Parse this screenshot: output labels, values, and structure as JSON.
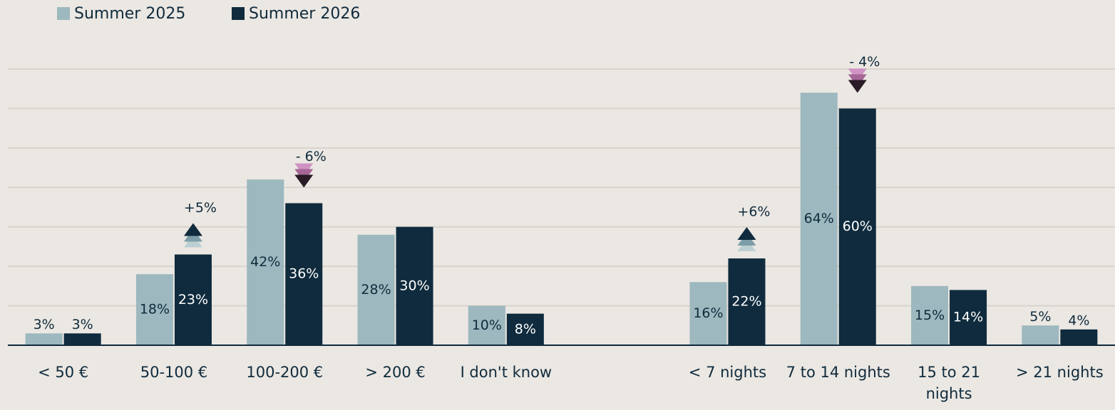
{
  "chart_data": {
    "type": "bar",
    "categories": [
      "< 50 €",
      "50-100 €",
      "100-200 €",
      "> 200 €",
      "I don't know",
      null,
      "< 7 nights",
      "7 to 14 nights",
      "15 to 21 nights",
      "> 21 nights"
    ],
    "series": [
      {
        "name": "Summer 2025",
        "color": "#9db8be",
        "values": [
          3,
          18,
          42,
          28,
          10,
          null,
          16,
          64,
          15,
          5
        ],
        "value_labels": [
          "3%",
          "18%",
          "42%",
          "28%",
          "10%",
          null,
          "16%",
          "64%",
          "15%",
          "5%"
        ]
      },
      {
        "name": "Summer 2026",
        "color": "#0f2b3d",
        "values": [
          3,
          23,
          36,
          30,
          8,
          null,
          22,
          60,
          14,
          4
        ],
        "value_labels": [
          "3%",
          "23%",
          "36%",
          "30%",
          "8%",
          null,
          "22%",
          "60%",
          "14%",
          "4%"
        ]
      }
    ],
    "change_labels": [
      null,
      "+5%",
      "- 6%",
      null,
      null,
      null,
      "+6%",
      "- 4%",
      null,
      null
    ],
    "ylim": [
      0,
      70
    ],
    "yticks": [
      0,
      10,
      20,
      30,
      40,
      50,
      60,
      70
    ],
    "grid": true,
    "legend": "top-left"
  }
}
